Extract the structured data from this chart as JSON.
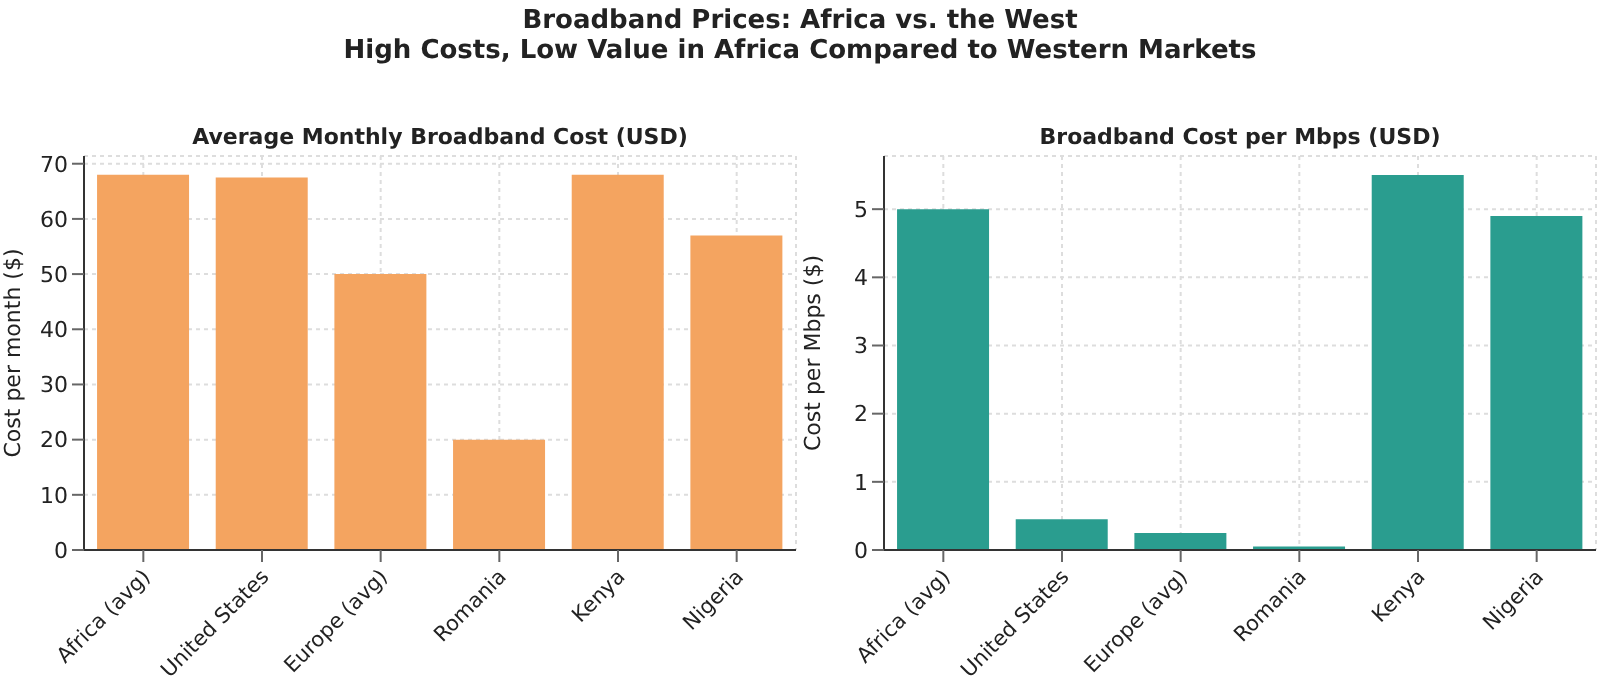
{
  "chart_data": [
    {
      "type": "bar",
      "title": "Average Monthly Broadband Cost (USD)",
      "annotations": [
        "Broadband Prices: Africa vs. the West",
        "High Costs, Low Value in Africa Compared to Western Markets"
      ],
      "categories": [
        "Africa (avg)",
        "United States",
        "Europe (avg)",
        "Romania",
        "Kenya",
        "Nigeria"
      ],
      "values": [
        68,
        67.5,
        50,
        20,
        68,
        57
      ],
      "color": "#f4a460",
      "ylabel": "Cost per month ($)",
      "ylim": [
        0,
        71.4
      ],
      "yticks": [
        0,
        10,
        20,
        30,
        40,
        50,
        60,
        70
      ],
      "grid": true
    },
    {
      "type": "bar",
      "title": "Broadband Cost per Mbps (USD)",
      "categories": [
        "Africa (avg)",
        "United States",
        "Europe (avg)",
        "Romania",
        "Kenya",
        "Nigeria"
      ],
      "values": [
        5.0,
        0.45,
        0.25,
        0.05,
        5.5,
        4.9
      ],
      "color": "#2a9d8f",
      "ylabel": "Cost per Mbps ($)",
      "ylim": [
        0,
        5.78
      ],
      "yticks": [
        0,
        1,
        2,
        3,
        4,
        5
      ],
      "grid": true
    }
  ]
}
